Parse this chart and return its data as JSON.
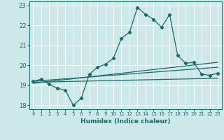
{
  "title": "",
  "xlabel": "Humidex (Indice chaleur)",
  "background_color": "#cce8e8",
  "grid_color": "#ffffff",
  "line_color": "#1a6b6b",
  "xlim": [
    -0.5,
    23.5
  ],
  "ylim": [
    17.8,
    23.2
  ],
  "xticks": [
    0,
    1,
    2,
    3,
    4,
    5,
    6,
    7,
    8,
    9,
    10,
    11,
    12,
    13,
    14,
    15,
    16,
    17,
    18,
    19,
    20,
    21,
    22,
    23
  ],
  "yticks": [
    18,
    19,
    20,
    21,
    22,
    23
  ],
  "line1_x": [
    0,
    1,
    2,
    3,
    4,
    5,
    6,
    7,
    8,
    9,
    10,
    11,
    12,
    13,
    14,
    15,
    16,
    17,
    18,
    19,
    20,
    21,
    22,
    23
  ],
  "line1_y": [
    19.2,
    19.3,
    19.05,
    18.85,
    18.75,
    18.0,
    18.35,
    19.55,
    19.9,
    20.05,
    20.35,
    21.35,
    21.65,
    22.9,
    22.55,
    22.3,
    21.9,
    22.55,
    20.5,
    20.1,
    20.15,
    19.55,
    19.5,
    19.6
  ],
  "line2_x": [
    0,
    23
  ],
  "line2_y": [
    19.15,
    19.35
  ],
  "line3_x": [
    0,
    23
  ],
  "line3_y": [
    19.2,
    19.9
  ],
  "line4_x": [
    0,
    23
  ],
  "line4_y": [
    19.1,
    20.15
  ]
}
